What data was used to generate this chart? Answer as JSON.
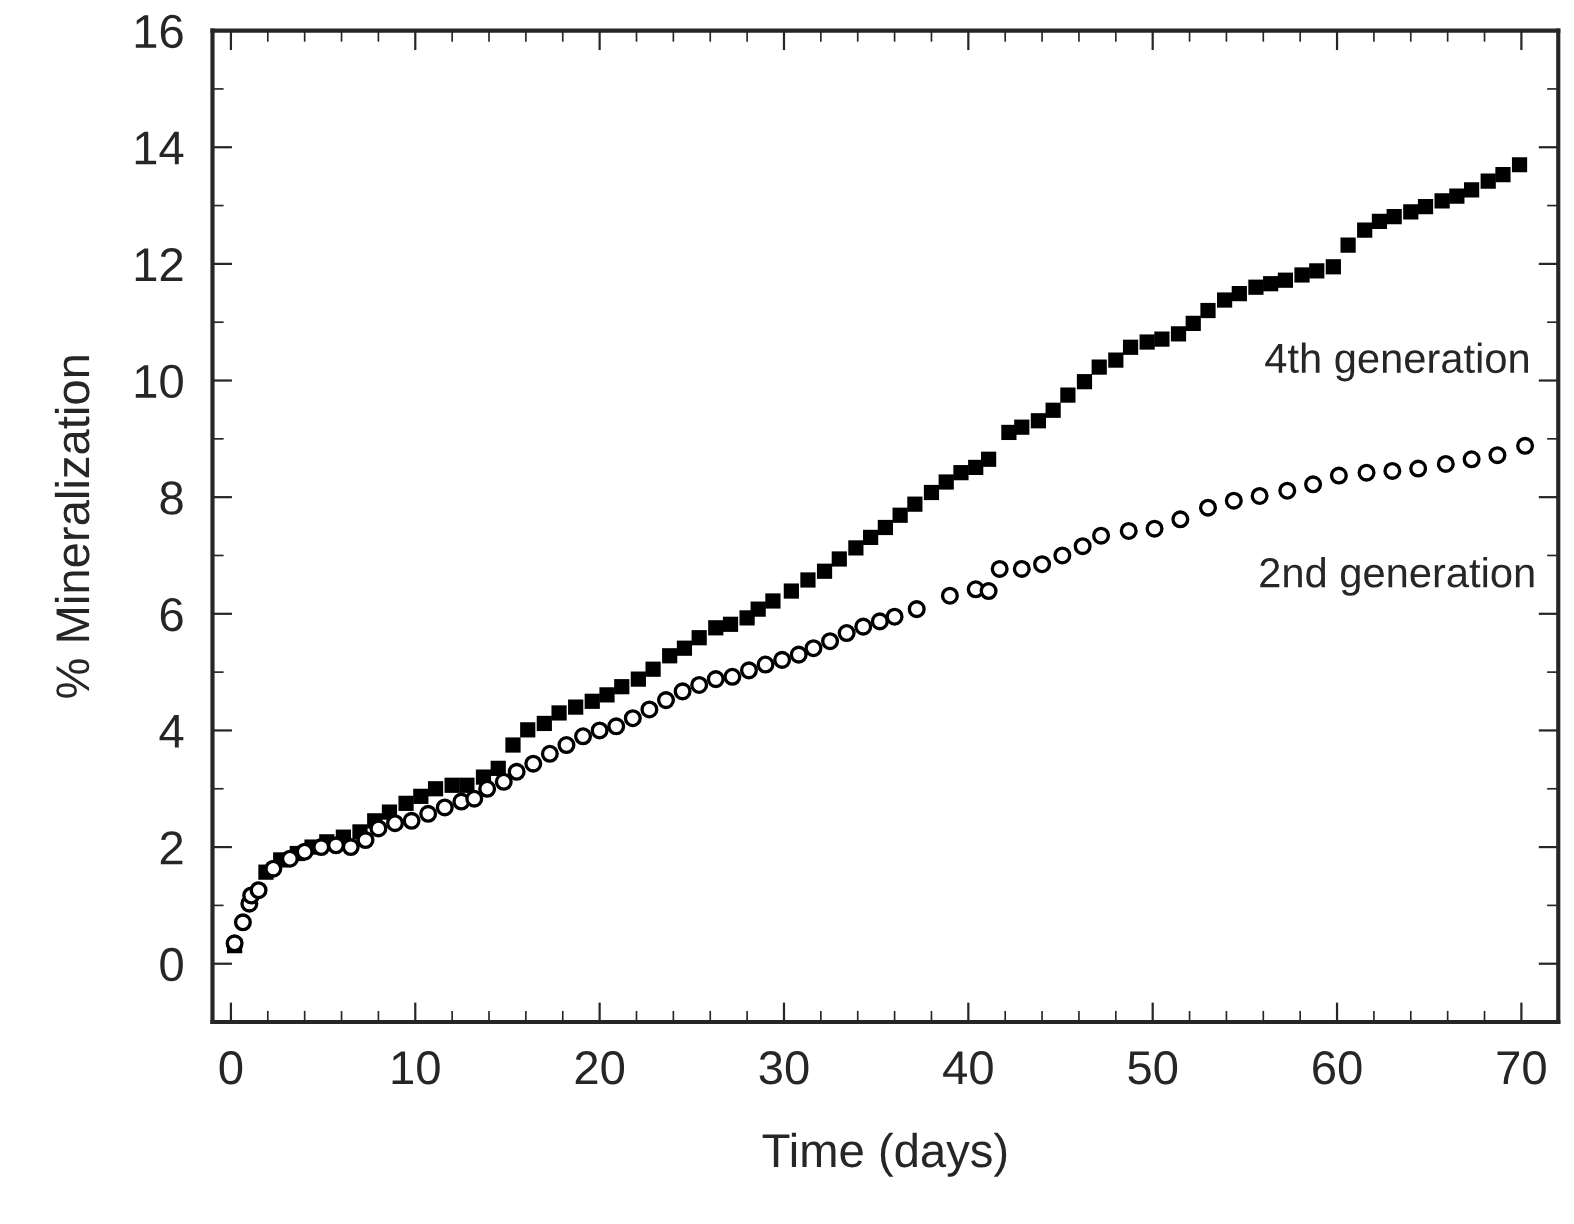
{
  "chart_data": {
    "type": "scatter",
    "xlabel": "Time (days)",
    "ylabel": "% Mineralization",
    "xlim": [
      -1,
      72
    ],
    "ylim": [
      -1,
      16
    ],
    "xticks": [
      0,
      10,
      20,
      30,
      40,
      50,
      60,
      70
    ],
    "yticks": [
      0,
      2,
      4,
      6,
      8,
      10,
      12,
      14,
      16
    ],
    "grid": false,
    "legend": false,
    "series": [
      {
        "name": "4th generation",
        "color": "#000000",
        "marker": "square",
        "x": [
          0.2,
          1.9,
          2.7,
          3.6,
          4.4,
          5.2,
          6.1,
          7.0,
          7.8,
          8.6,
          9.5,
          10.3,
          11.1,
          12.0,
          12.8,
          13.7,
          14.5,
          15.3,
          16.1,
          17.0,
          17.8,
          18.7,
          19.6,
          20.4,
          21.2,
          22.1,
          22.9,
          23.8,
          24.6,
          25.4,
          26.3,
          27.1,
          28.0,
          28.6,
          29.4,
          30.4,
          31.3,
          32.2,
          33.0,
          33.9,
          34.7,
          35.5,
          36.3,
          37.1,
          38.0,
          38.8,
          39.6,
          40.4,
          41.1,
          42.2,
          42.9,
          43.8,
          44.6,
          45.4,
          46.3,
          47.1,
          48.0,
          48.8,
          49.7,
          50.5,
          51.4,
          52.2,
          53.0,
          53.9,
          54.7,
          55.6,
          56.4,
          57.2,
          58.1,
          58.9,
          59.8,
          60.6,
          61.5,
          62.3,
          63.1,
          64.0,
          64.8,
          65.7,
          66.5,
          67.3,
          68.2,
          69.0,
          69.9
        ],
        "values": [
          0.31,
          1.57,
          1.78,
          1.89,
          2.0,
          2.09,
          2.17,
          2.26,
          2.45,
          2.6,
          2.75,
          2.87,
          3.0,
          3.06,
          3.06,
          3.2,
          3.35,
          3.75,
          4.01,
          4.12,
          4.3,
          4.4,
          4.5,
          4.61,
          4.75,
          4.88,
          5.05,
          5.28,
          5.41,
          5.59,
          5.76,
          5.82,
          5.93,
          6.08,
          6.22,
          6.39,
          6.58,
          6.73,
          6.94,
          7.13,
          7.31,
          7.48,
          7.69,
          7.88,
          8.08,
          8.26,
          8.42,
          8.51,
          8.65,
          9.11,
          9.2,
          9.31,
          9.49,
          9.75,
          9.98,
          10.23,
          10.35,
          10.57,
          10.66,
          10.71,
          10.8,
          10.98,
          11.2,
          11.38,
          11.49,
          11.6,
          11.66,
          11.72,
          11.81,
          11.88,
          11.95,
          12.32,
          12.58,
          12.73,
          12.81,
          12.89,
          12.98,
          13.08,
          13.16,
          13.27,
          13.42,
          13.53,
          13.7
        ]
      },
      {
        "name": "2nd generation",
        "color": "#000000",
        "marker": "circle",
        "x": [
          0.2,
          0.65,
          1.0,
          1.1,
          1.5,
          2.3,
          3.2,
          4.0,
          4.9,
          5.7,
          6.5,
          7.3,
          8.0,
          8.9,
          9.8,
          10.7,
          11.6,
          12.5,
          13.2,
          13.9,
          14.8,
          15.5,
          16.4,
          17.3,
          18.2,
          19.1,
          20.0,
          20.9,
          21.8,
          22.7,
          23.6,
          24.5,
          25.4,
          26.3,
          27.2,
          28.1,
          29.0,
          29.9,
          30.8,
          31.6,
          32.5,
          33.4,
          34.3,
          35.2,
          36.0,
          37.2,
          39.0,
          40.4,
          41.1,
          41.7,
          42.9,
          44.0,
          45.1,
          46.2,
          47.2,
          48.7,
          50.1,
          51.5,
          53.0,
          54.4,
          55.8,
          57.3,
          58.7,
          60.1,
          61.6,
          63.0,
          64.4,
          65.9,
          67.3,
          68.7,
          70.2
        ],
        "values": [
          0.35,
          0.71,
          1.03,
          1.17,
          1.26,
          1.63,
          1.8,
          1.92,
          2.0,
          2.03,
          2.0,
          2.12,
          2.32,
          2.41,
          2.45,
          2.57,
          2.68,
          2.78,
          2.83,
          3.0,
          3.12,
          3.29,
          3.43,
          3.6,
          3.75,
          3.9,
          4.0,
          4.07,
          4.21,
          4.36,
          4.52,
          4.67,
          4.78,
          4.88,
          4.92,
          5.03,
          5.13,
          5.21,
          5.3,
          5.41,
          5.53,
          5.67,
          5.78,
          5.87,
          5.95,
          6.08,
          6.31,
          6.42,
          6.39,
          6.77,
          6.77,
          6.85,
          7.0,
          7.16,
          7.34,
          7.42,
          7.46,
          7.62,
          7.82,
          7.94,
          8.02,
          8.11,
          8.22,
          8.37,
          8.42,
          8.45,
          8.49,
          8.57,
          8.65,
          8.72,
          8.88
        ]
      }
    ]
  }
}
